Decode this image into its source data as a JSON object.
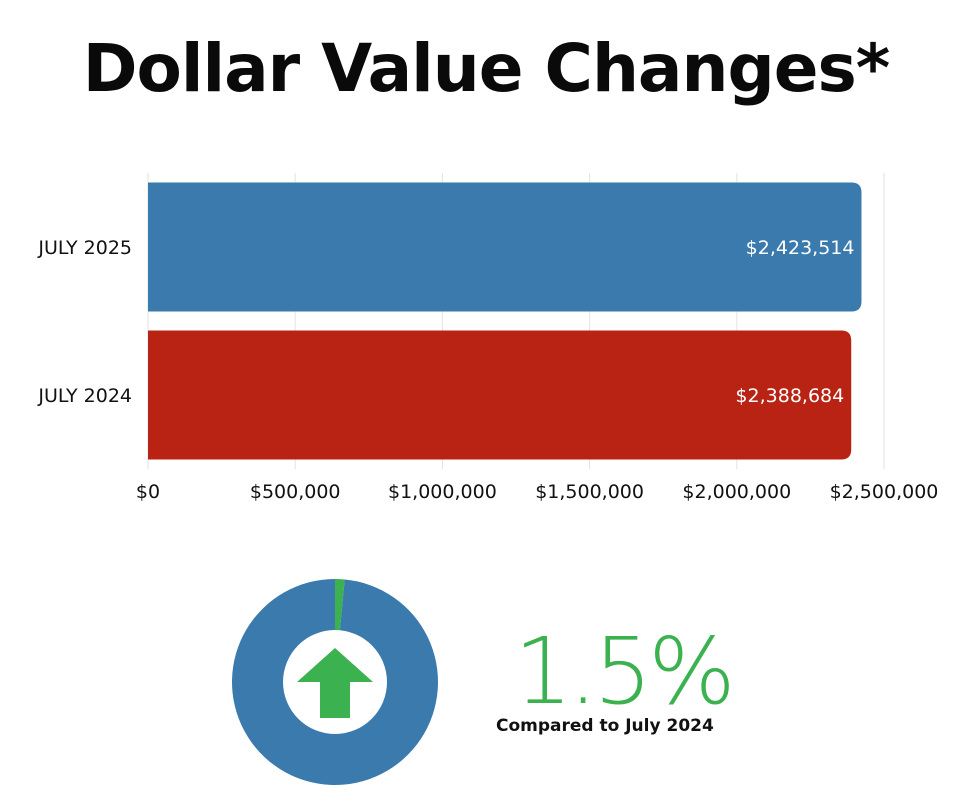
{
  "title": "Dollar Value Changes*",
  "chart_data": [
    {
      "type": "bar",
      "orientation": "horizontal",
      "categories": [
        "JULY 2025",
        "JULY 2024"
      ],
      "values": [
        2423514,
        2388684
      ],
      "data_labels": [
        "$2,423,514",
        "$2,388,684"
      ],
      "colors": [
        "#3a7aad",
        "#b82314"
      ],
      "xlim": [
        0,
        2500000
      ],
      "ticks": [
        0,
        500000,
        1000000,
        1500000,
        2000000,
        2500000
      ],
      "tick_labels": [
        "$0",
        "$500,000",
        "$1,000,000",
        "$1,500,000",
        "$2,000,000",
        "$2,500,000"
      ],
      "grid": true
    },
    {
      "type": "pie",
      "variant": "donut",
      "values": [
        1.5,
        98.5
      ],
      "colors": [
        "#3bb150",
        "#3a7aad"
      ]
    }
  ],
  "summary": {
    "change": "1.5%",
    "change_color": "#3bb150",
    "caption": "Compared to July 2024",
    "direction_icon": "up-arrow-icon"
  }
}
